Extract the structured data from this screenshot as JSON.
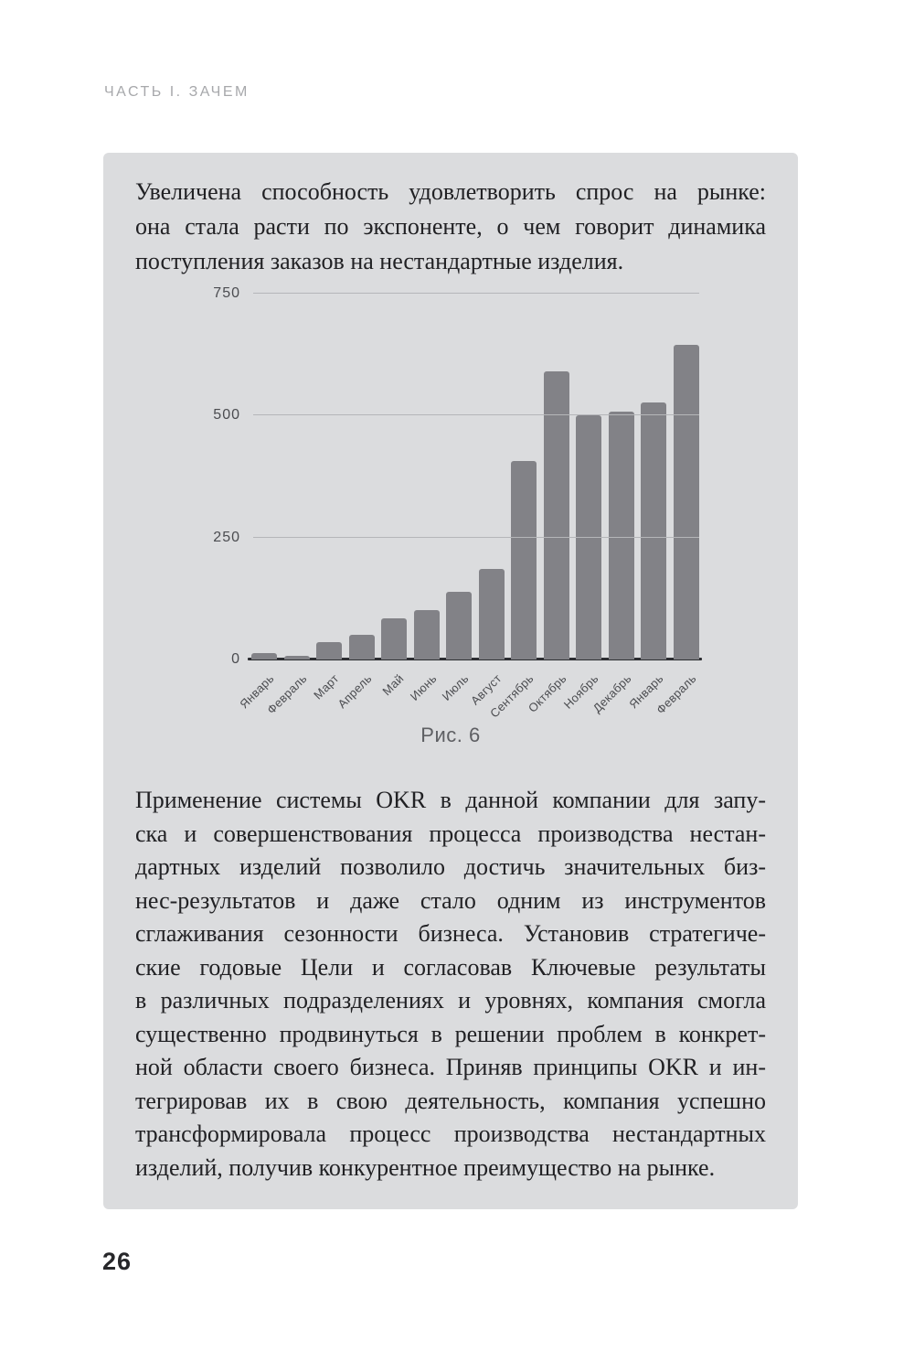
{
  "page": {
    "kicker": "ЧАСТЬ I. ЗАЧЕМ",
    "page_number": "26"
  },
  "card": {
    "intro_lines": [
      "Увеличена способность удовлетворить спрос на рынке:",
      "она стала расти по экспоненте, о чем говорит динамика",
      "поступления заказов на нестандартные изделия."
    ],
    "caption": "Рис. 6",
    "body_lines": [
      "Применение системы OKR в данной компании для запу-",
      "ска и совершенствования процесса производства нестан-",
      "дартных изделий позволило достичь значительных биз-",
      "нес-результатов и даже стало одним из инструментов",
      "сглаживания сезонности бизнеса. Установив стратегиче-",
      "ские годовые Цели и согласовав Ключевые результаты",
      "в различных подразделениях и уровнях, компания смогла",
      "существенно продвинуться в решении проблем в конкрет-",
      "ной области своего бизнеса. Приняв принципы OKR и ин-",
      "тегрировав их в свою деятельность, компания успешно",
      "трансформировала процесс производства нестандартных",
      "изделий, получив конкурентное преимущество на рынке."
    ]
  },
  "chart_data": {
    "type": "bar",
    "title": "",
    "xlabel": "",
    "ylabel": "",
    "categories": [
      "Январь",
      "Февраль",
      "Март",
      "Апрель",
      "Май",
      "Июнь",
      "Июль",
      "Август",
      "Сентябрь",
      "Октябрь",
      "Ноябрь",
      "Декабрь",
      "Январь",
      "Февраль"
    ],
    "values": [
      14,
      8,
      35,
      50,
      85,
      102,
      138,
      186,
      406,
      590,
      500,
      508,
      527,
      645
    ],
    "yticks": [
      0,
      250,
      500,
      750
    ],
    "ylim": [
      0,
      750
    ],
    "grid": true,
    "legend": "none",
    "bar_color": "#828287",
    "gridline_color": "#b5b6b9",
    "axis_color": "#2d2e32",
    "tick_label_color": "#4b4c50",
    "background_color": "#dbdcde"
  }
}
